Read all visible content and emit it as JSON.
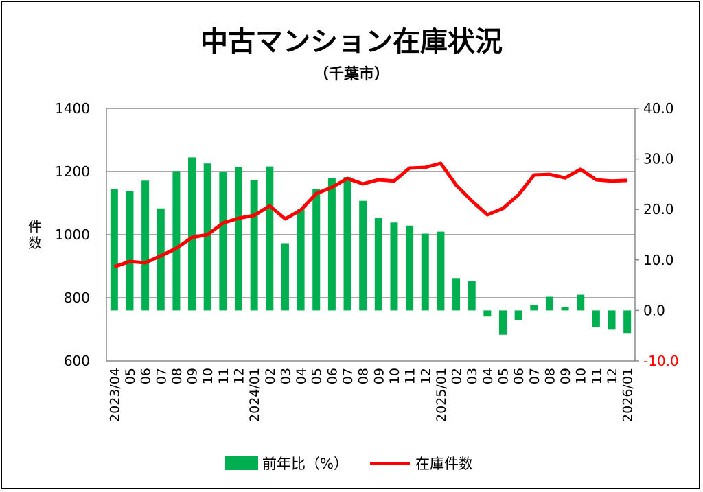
{
  "chart_data": {
    "type": "bar+line",
    "title": "中古マンション在庫状況",
    "subtitle": "（千葉市）",
    "ylabel": "件数",
    "ylim_left": [
      600,
      1400
    ],
    "yticks_left": [
      "600",
      "800",
      "1000",
      "1200",
      "1400"
    ],
    "ylim_right": [
      -10,
      40
    ],
    "yticks_right": [
      "-10.0",
      "0.0",
      "10.0",
      "20.0",
      "30.0",
      "40.0"
    ],
    "grid": true,
    "legend_position": "bottom",
    "categories": [
      "2023/04",
      "05",
      "06",
      "07",
      "08",
      "09",
      "10",
      "11",
      "12",
      "2024/01",
      "02",
      "03",
      "04",
      "05",
      "06",
      "07",
      "08",
      "09",
      "10",
      "11",
      "12",
      "2025/01",
      "02",
      "03",
      "04",
      "05",
      "06",
      "07",
      "08",
      "09",
      "10",
      "11",
      "12",
      "2026/01"
    ],
    "series": [
      {
        "name": "前年比（%）",
        "type": "bar",
        "axis": "right",
        "color": "#00B050",
        "values": [
          24.0,
          23.6,
          25.7,
          20.2,
          27.6,
          30.3,
          29.1,
          27.4,
          28.4,
          25.8,
          28.5,
          13.3,
          20.0,
          24.0,
          26.2,
          26.4,
          21.7,
          18.3,
          17.4,
          16.8,
          15.2,
          15.6,
          6.4,
          5.8,
          -1.2,
          -4.8,
          -1.9,
          1.1,
          2.7,
          0.7,
          3.1,
          -3.3,
          -3.8,
          -4.6
        ]
      },
      {
        "name": "在庫件数",
        "type": "line",
        "axis": "left",
        "color": "#FF0000",
        "values": [
          898,
          915,
          911,
          933,
          957,
          991,
          1000,
          1037,
          1052,
          1061,
          1091,
          1050,
          1078,
          1130,
          1150,
          1178,
          1161,
          1174,
          1170,
          1211,
          1213,
          1226,
          1157,
          1107,
          1063,
          1083,
          1126,
          1189,
          1191,
          1180,
          1207,
          1174,
          1170,
          1172
        ]
      }
    ]
  }
}
